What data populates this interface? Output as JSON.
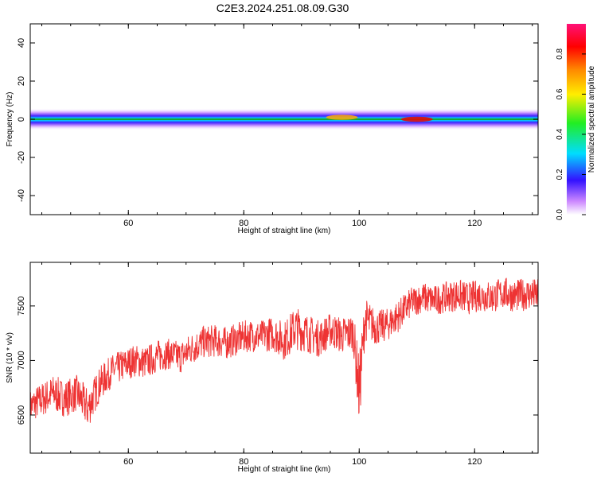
{
  "title": "C2E3.2024.251.08.09.G30",
  "chart_data": [
    {
      "type": "heatmap",
      "xlabel": "Height of straight line (km)",
      "ylabel": "Frequency (Hz)",
      "xlim": [
        43,
        131
      ],
      "ylim": [
        -50,
        50
      ],
      "xticks": [
        60,
        80,
        100,
        120
      ],
      "xtick_labels": [
        "60",
        "80",
        "100",
        "120"
      ],
      "yticks": [
        -40,
        -20,
        0,
        20,
        40
      ],
      "ytick_labels": [
        "-40",
        "-20",
        "0",
        "20",
        "40"
      ],
      "colorbar": {
        "label": "Normalized spectral amplitude",
        "range": [
          0,
          0.95
        ],
        "ticks": [
          0.0,
          0.2,
          0.4,
          0.6,
          0.8
        ],
        "tick_labels": [
          "0.0",
          "0.2",
          "0.4",
          "0.6",
          "0.8"
        ],
        "colormap": "hsv-rainbow (white-purple-blue-cyan-green-yellow-red-magenta)"
      },
      "band": {
        "center_freq_hz": 0,
        "half_width_hz": 3,
        "note": "Single narrow spectral band centred near 0 Hz across all heights, intensity mostly 0.3-0.5",
        "highlights": [
          {
            "x": 97,
            "freq": 1,
            "amplitude": 0.7
          },
          {
            "x": 110,
            "freq": 0,
            "amplitude": 0.9
          }
        ]
      },
      "grid": false
    },
    {
      "type": "line",
      "xlabel": "Height of straight line (km)",
      "ylabel": "SNR (10 * v/v)",
      "xlim": [
        43,
        131
      ],
      "ylim": [
        6150,
        7900
      ],
      "xticks": [
        60,
        80,
        100,
        120
      ],
      "xtick_labels": [
        "60",
        "80",
        "100",
        "120"
      ],
      "yticks": [
        6500,
        7000,
        7500
      ],
      "ytick_labels": [
        "6500",
        "7000",
        "7500"
      ],
      "color": "#ee3333",
      "series": [
        {
          "x": [
            43,
            45,
            47,
            49,
            51,
            53,
            55,
            57,
            59,
            61,
            63,
            65,
            67,
            69,
            71,
            73,
            75,
            77,
            79,
            81,
            83,
            85,
            87,
            89,
            91,
            93,
            95,
            97,
            99,
            100,
            101,
            103,
            105,
            107,
            109,
            111,
            113,
            115,
            117,
            119,
            121,
            123,
            125,
            127,
            129,
            131
          ],
          "values": [
            6580,
            6640,
            6700,
            6650,
            6700,
            6560,
            6780,
            6900,
            6950,
            7000,
            6980,
            7040,
            7060,
            7030,
            7110,
            7170,
            7180,
            7160,
            7200,
            7230,
            7220,
            7250,
            7180,
            7300,
            7250,
            7200,
            7280,
            7230,
            7260,
            6700,
            7380,
            7300,
            7330,
            7420,
            7530,
            7580,
            7550,
            7580,
            7600,
            7570,
            7600,
            7580,
            7620,
            7590,
            7610,
            7600
          ],
          "spread": [
            150,
            160,
            170,
            170,
            170,
            190,
            160,
            150,
            150,
            150,
            150,
            150,
            140,
            150,
            150,
            150,
            150,
            150,
            150,
            150,
            150,
            160,
            180,
            200,
            180,
            170,
            160,
            170,
            180,
            350,
            200,
            160,
            150,
            150,
            140,
            140,
            140,
            140,
            150,
            150,
            150,
            150,
            150,
            150,
            150,
            150
          ]
        }
      ],
      "grid": false
    }
  ]
}
